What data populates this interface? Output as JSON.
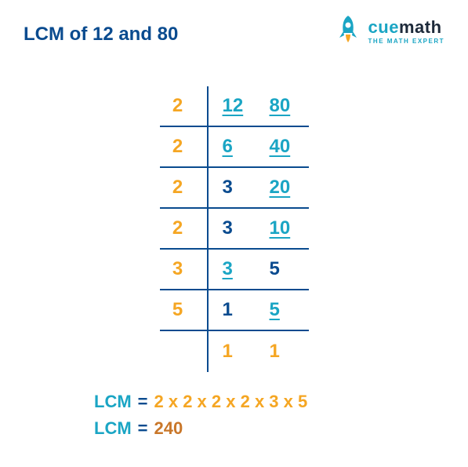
{
  "colors": {
    "blue": "#0a4b8f",
    "teal": "#1aa5c4",
    "orange": "#f5a623",
    "dark_orange": "#c9772a",
    "logo_dark": "#1d2a3a"
  },
  "title": "LCM of 12 and 80",
  "logo": {
    "main_cue": "cue",
    "main_math": "math",
    "sub": "THE MATH EXPERT"
  },
  "division_table": {
    "border_color": "#0a4b8f",
    "divisor_color": "#f5a623",
    "active_color": "#1aa5c4",
    "inactive_color": "#0a4b8f",
    "rows": [
      {
        "divisor": "2",
        "cells": [
          {
            "v": "12",
            "u": true
          },
          {
            "v": "80",
            "u": true
          }
        ]
      },
      {
        "divisor": "2",
        "cells": [
          {
            "v": "6",
            "u": true
          },
          {
            "v": "40",
            "u": true
          }
        ]
      },
      {
        "divisor": "2",
        "cells": [
          {
            "v": "3",
            "u": false
          },
          {
            "v": "20",
            "u": true
          }
        ]
      },
      {
        "divisor": "2",
        "cells": [
          {
            "v": "3",
            "u": false
          },
          {
            "v": "10",
            "u": true
          }
        ]
      },
      {
        "divisor": "3",
        "cells": [
          {
            "v": "3",
            "u": true
          },
          {
            "v": "5",
            "u": false
          }
        ]
      },
      {
        "divisor": "5",
        "cells": [
          {
            "v": "1",
            "u": false
          },
          {
            "v": "5",
            "u": true
          }
        ]
      },
      {
        "divisor": "",
        "cells": [
          {
            "v": "1",
            "u": false
          },
          {
            "v": "1",
            "u": false
          }
        ]
      }
    ]
  },
  "result": {
    "label": "LCM",
    "eq": "=",
    "expression": "2 x 2 x 2 x 2 x 3 x 5",
    "value": "240"
  }
}
